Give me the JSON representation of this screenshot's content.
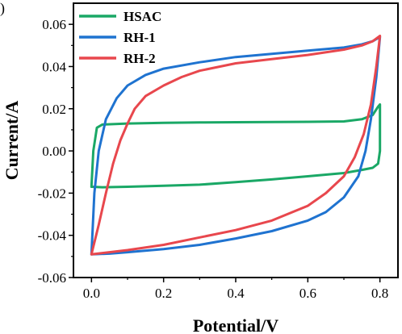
{
  "chart_data": {
    "type": "line",
    "panel_label": ")",
    "xlabel": "Potential/V",
    "ylabel": "Current/A",
    "xlim": [
      -0.05,
      0.85
    ],
    "ylim": [
      -0.06,
      0.07
    ],
    "x_ticks": [
      0.0,
      0.2,
      0.4,
      0.6,
      0.8
    ],
    "x_tick_labels": [
      "0.0",
      "0.2",
      "0.4",
      "0.6",
      "0.8"
    ],
    "y_ticks": [
      -0.06,
      -0.04,
      -0.02,
      0.0,
      0.02,
      0.04,
      0.06
    ],
    "y_tick_labels": [
      "-0.06",
      "-0.04",
      "-0.02",
      "0.00",
      "0.02",
      "0.04",
      "0.06"
    ],
    "grid": false,
    "legend_position": "top-left",
    "series": [
      {
        "name": "HSAC",
        "color": "#1aa866",
        "points": [
          [
            0.0,
            -0.017
          ],
          [
            0.005,
            0.0
          ],
          [
            0.015,
            0.011
          ],
          [
            0.03,
            0.0125
          ],
          [
            0.1,
            0.013
          ],
          [
            0.2,
            0.0133
          ],
          [
            0.3,
            0.0135
          ],
          [
            0.4,
            0.0136
          ],
          [
            0.5,
            0.0137
          ],
          [
            0.6,
            0.0138
          ],
          [
            0.7,
            0.014
          ],
          [
            0.75,
            0.015
          ],
          [
            0.78,
            0.017
          ],
          [
            0.795,
            0.021
          ],
          [
            0.8,
            0.022
          ],
          [
            0.8,
            0.0
          ],
          [
            0.795,
            -0.006
          ],
          [
            0.78,
            -0.008
          ],
          [
            0.75,
            -0.009
          ],
          [
            0.7,
            -0.0105
          ],
          [
            0.6,
            -0.012
          ],
          [
            0.5,
            -0.0135
          ],
          [
            0.4,
            -0.0148
          ],
          [
            0.3,
            -0.016
          ],
          [
            0.2,
            -0.0165
          ],
          [
            0.1,
            -0.017
          ],
          [
            0.03,
            -0.0172
          ],
          [
            0.0,
            -0.017
          ]
        ]
      },
      {
        "name": "RH-1",
        "color": "#1f73d0",
        "points": [
          [
            0.0,
            -0.049
          ],
          [
            0.008,
            -0.02
          ],
          [
            0.02,
            0.0
          ],
          [
            0.04,
            0.015
          ],
          [
            0.07,
            0.025
          ],
          [
            0.1,
            0.031
          ],
          [
            0.15,
            0.036
          ],
          [
            0.2,
            0.039
          ],
          [
            0.3,
            0.042
          ],
          [
            0.4,
            0.0445
          ],
          [
            0.5,
            0.046
          ],
          [
            0.6,
            0.0475
          ],
          [
            0.7,
            0.049
          ],
          [
            0.75,
            0.0505
          ],
          [
            0.78,
            0.052
          ],
          [
            0.8,
            0.054
          ],
          [
            0.79,
            0.035
          ],
          [
            0.775,
            0.015
          ],
          [
            0.76,
            0.0
          ],
          [
            0.74,
            -0.012
          ],
          [
            0.7,
            -0.022
          ],
          [
            0.65,
            -0.029
          ],
          [
            0.6,
            -0.033
          ],
          [
            0.5,
            -0.038
          ],
          [
            0.4,
            -0.0415
          ],
          [
            0.3,
            -0.0445
          ],
          [
            0.2,
            -0.0465
          ],
          [
            0.1,
            -0.048
          ],
          [
            0.05,
            -0.0487
          ],
          [
            0.0,
            -0.049
          ]
        ]
      },
      {
        "name": "RH-2",
        "color": "#e8474d",
        "points": [
          [
            0.0,
            -0.049
          ],
          [
            0.02,
            -0.035
          ],
          [
            0.04,
            -0.02
          ],
          [
            0.06,
            -0.006
          ],
          [
            0.08,
            0.005
          ],
          [
            0.1,
            0.013
          ],
          [
            0.12,
            0.02
          ],
          [
            0.15,
            0.026
          ],
          [
            0.2,
            0.031
          ],
          [
            0.25,
            0.035
          ],
          [
            0.3,
            0.038
          ],
          [
            0.4,
            0.0415
          ],
          [
            0.5,
            0.0435
          ],
          [
            0.6,
            0.0455
          ],
          [
            0.7,
            0.048
          ],
          [
            0.75,
            0.05
          ],
          [
            0.78,
            0.052
          ],
          [
            0.8,
            0.0545
          ],
          [
            0.79,
            0.04
          ],
          [
            0.775,
            0.022
          ],
          [
            0.755,
            0.008
          ],
          [
            0.73,
            -0.003
          ],
          [
            0.7,
            -0.012
          ],
          [
            0.65,
            -0.02
          ],
          [
            0.6,
            -0.026
          ],
          [
            0.5,
            -0.033
          ],
          [
            0.4,
            -0.0375
          ],
          [
            0.3,
            -0.041
          ],
          [
            0.2,
            -0.0445
          ],
          [
            0.1,
            -0.047
          ],
          [
            0.05,
            -0.048
          ],
          [
            0.0,
            -0.049
          ]
        ]
      }
    ]
  }
}
